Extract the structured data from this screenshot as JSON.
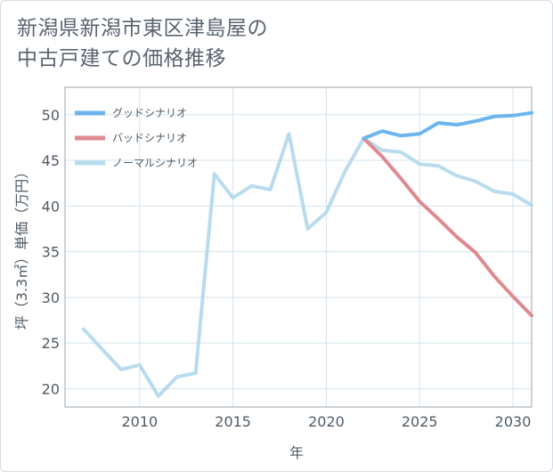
{
  "title": {
    "line1": "新潟県新潟市東区津島屋の",
    "line2": "中古戸建ての価格推移"
  },
  "colors": {
    "good": "#6cb5ef",
    "bad": "#de8a8f",
    "normal": "#b8dcee",
    "grid": "#d3e3ee",
    "frame": "#9aa6b0"
  },
  "chart_data": {
    "type": "line",
    "xlabel": "年",
    "ylabel": "坪（3.3㎡）単価（万円）",
    "xlim": [
      2006,
      2031
    ],
    "ylim": [
      18,
      53
    ],
    "x_ticks": [
      2010,
      2015,
      2020,
      2025,
      2030
    ],
    "y_ticks": [
      20,
      25,
      30,
      35,
      40,
      45,
      50
    ],
    "legend_position": "top-left",
    "grid": true,
    "series": [
      {
        "name": "グッドシナリオ",
        "color_key": "good",
        "x": [
          2022,
          2023,
          2024,
          2025,
          2026,
          2027,
          2028,
          2029,
          2030,
          2031
        ],
        "y": [
          47.4,
          48.2,
          47.7,
          47.9,
          49.1,
          48.9,
          49.3,
          49.8,
          49.9,
          50.2
        ]
      },
      {
        "name": "バッドシナリオ",
        "color_key": "bad",
        "x": [
          2022,
          2023,
          2024,
          2025,
          2026,
          2027,
          2028,
          2029,
          2030,
          2031
        ],
        "y": [
          47.4,
          45.4,
          43.0,
          40.5,
          38.6,
          36.6,
          34.9,
          32.3,
          30.1,
          28.0
        ]
      },
      {
        "name": "ノーマルシナリオ",
        "color_key": "normal",
        "x": [
          2007,
          2008,
          2009,
          2010,
          2011,
          2012,
          2013,
          2014,
          2015,
          2016,
          2017,
          2018,
          2019,
          2020,
          2021,
          2022,
          2023,
          2024,
          2025,
          2026,
          2027,
          2028,
          2029,
          2030,
          2031
        ],
        "y": [
          26.5,
          24.3,
          22.1,
          22.6,
          19.2,
          21.3,
          21.7,
          43.5,
          40.9,
          42.2,
          41.8,
          47.9,
          37.5,
          39.3,
          43.8,
          47.4,
          46.1,
          45.9,
          44.6,
          44.4,
          43.3,
          42.7,
          41.6,
          41.3,
          40.1
        ]
      }
    ]
  }
}
